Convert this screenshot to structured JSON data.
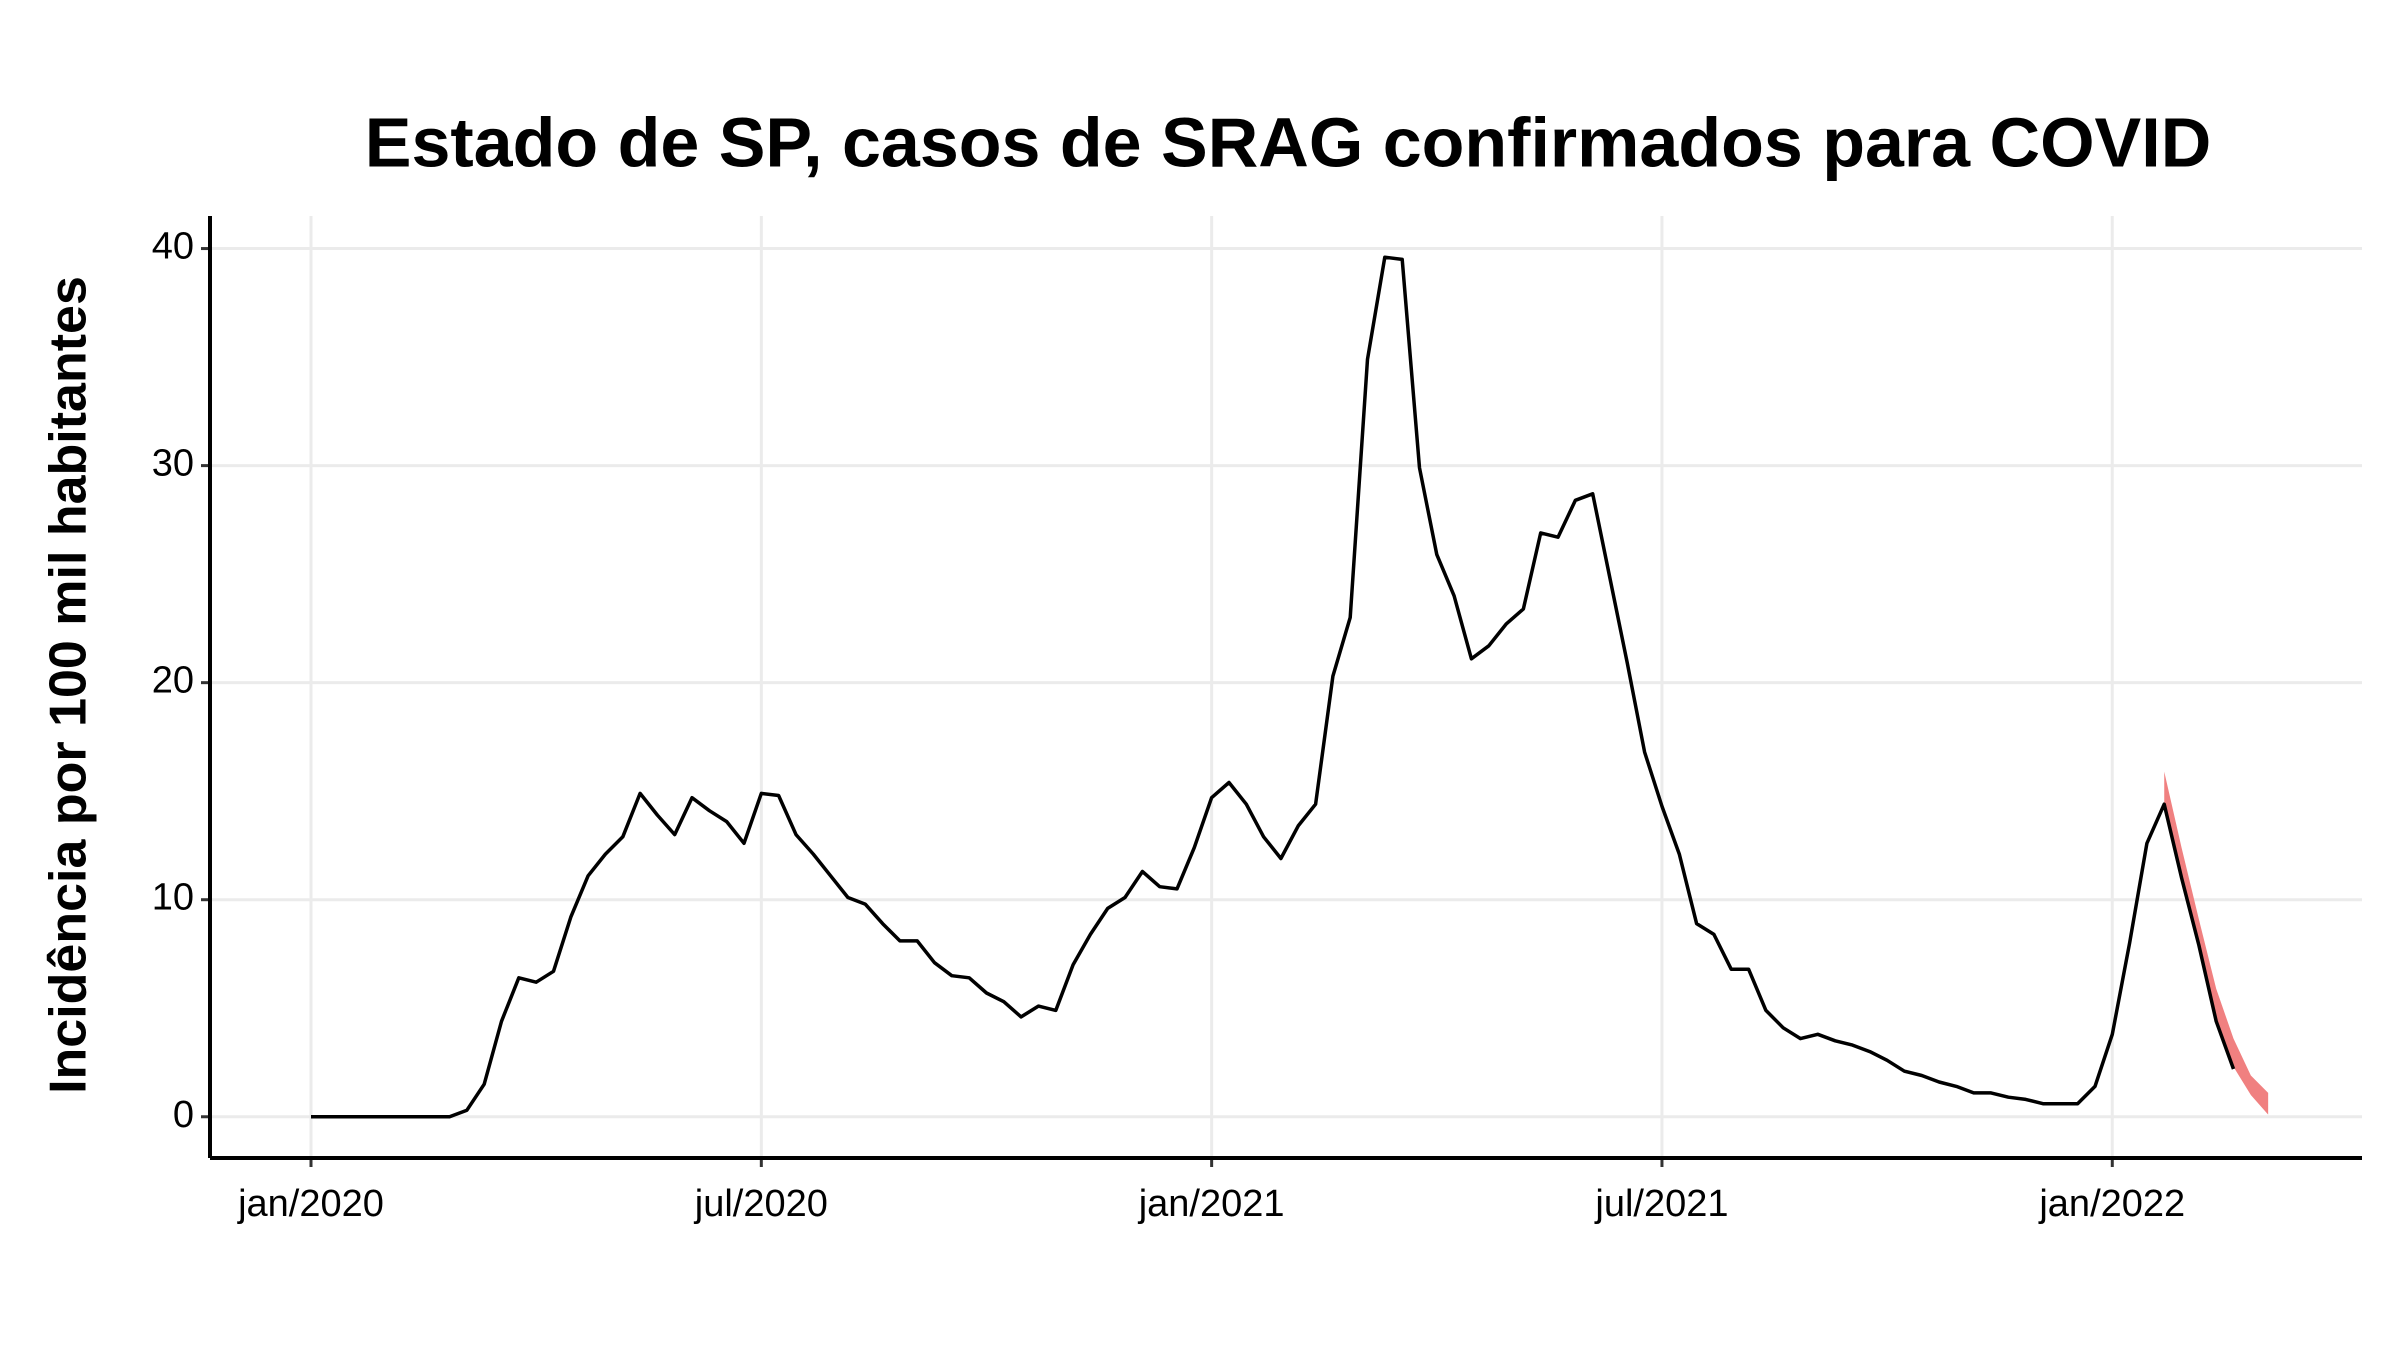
{
  "chart_data": {
    "type": "line",
    "title": "Estado de SP, casos de SRAG confirmados para COVID",
    "y_label": "Incidência por 100 mil habitantes",
    "categories": [
      "jan/2020",
      null,
      null,
      null,
      null,
      null,
      null,
      null,
      null,
      null,
      null,
      null,
      null,
      null,
      null,
      null,
      null,
      null,
      null,
      null,
      null,
      null,
      null,
      null,
      null,
      null,
      "jul/2020",
      null,
      null,
      null,
      null,
      null,
      null,
      null,
      null,
      null,
      null,
      null,
      null,
      null,
      null,
      null,
      null,
      null,
      null,
      null,
      null,
      null,
      null,
      null,
      null,
      null,
      "jan/2021",
      null,
      null,
      null,
      null,
      null,
      null,
      null,
      null,
      null,
      null,
      null,
      null,
      null,
      null,
      null,
      null,
      null,
      null,
      null,
      null,
      null,
      null,
      null,
      null,
      null,
      "jul/2021",
      null,
      null,
      null,
      null,
      null,
      null,
      null,
      null,
      null,
      null,
      null,
      null,
      null,
      null,
      null,
      null,
      null,
      null,
      null,
      null,
      null,
      null,
      null,
      null,
      null,
      "jan/2022",
      null,
      null,
      null,
      null,
      null,
      null,
      null,
      null,
      null
    ],
    "series": [
      {
        "color": "#000000",
        "values": [
          0,
          0,
          0,
          0,
          0,
          0,
          0,
          0,
          0,
          0.3,
          1.5,
          4.4,
          6.4,
          6.2,
          6.7,
          9.2,
          11.1,
          12.1,
          12.9,
          14.9,
          13.9,
          13.0,
          14.7,
          14.1,
          13.6,
          12.6,
          14.9,
          14.8,
          13.0,
          12.1,
          11.1,
          10.1,
          9.8,
          8.9,
          8.1,
          8.1,
          7.1,
          6.5,
          6.4,
          5.7,
          5.3,
          4.6,
          5.1,
          4.9,
          7.0,
          8.4,
          9.6,
          10.1,
          11.3,
          10.6,
          10.5,
          12.4,
          14.7,
          15.4,
          14.4,
          12.9,
          11.9,
          13.4,
          14.4,
          20.3,
          23.0,
          34.9,
          39.6,
          39.5,
          29.9,
          25.9,
          24.0,
          21.1,
          21.7,
          22.7,
          23.4,
          26.9,
          26.7,
          28.4,
          28.7,
          24.8,
          20.9,
          16.8,
          14.3,
          12.1,
          8.9,
          8.4,
          6.8,
          6.8,
          4.9,
          4.1,
          3.6,
          3.8,
          3.5,
          3.3,
          3.0,
          2.6,
          2.1,
          1.9,
          1.6,
          1.4,
          1.1,
          1.1,
          0.9,
          0.8,
          0.6,
          0.6,
          0.6,
          1.4,
          3.8,
          8.0,
          12.6,
          14.4,
          11.0,
          7.9,
          4.4,
          2.2,
          null,
          null
        ]
      }
    ],
    "band": {
      "color": "#f08080",
      "lower": [
        null,
        null,
        null,
        null,
        null,
        null,
        null,
        null,
        null,
        null,
        null,
        null,
        null,
        null,
        null,
        null,
        null,
        null,
        null,
        null,
        null,
        null,
        null,
        null,
        null,
        null,
        null,
        null,
        null,
        null,
        null,
        null,
        null,
        null,
        null,
        null,
        null,
        null,
        null,
        null,
        null,
        null,
        null,
        null,
        null,
        null,
        null,
        null,
        null,
        null,
        null,
        null,
        null,
        null,
        null,
        null,
        null,
        null,
        null,
        null,
        null,
        null,
        null,
        null,
        null,
        null,
        null,
        null,
        null,
        null,
        null,
        null,
        null,
        null,
        null,
        null,
        null,
        null,
        null,
        null,
        null,
        null,
        null,
        null,
        null,
        null,
        null,
        null,
        null,
        null,
        null,
        null,
        null,
        null,
        null,
        null,
        null,
        null,
        null,
        null,
        null,
        null,
        null,
        null,
        null,
        null,
        null,
        14.4,
        11.0,
        7.9,
        4.4,
        2.3,
        1.0,
        0.1
      ],
      "upper": [
        null,
        null,
        null,
        null,
        null,
        null,
        null,
        null,
        null,
        null,
        null,
        null,
        null,
        null,
        null,
        null,
        null,
        null,
        null,
        null,
        null,
        null,
        null,
        null,
        null,
        null,
        null,
        null,
        null,
        null,
        null,
        null,
        null,
        null,
        null,
        null,
        null,
        null,
        null,
        null,
        null,
        null,
        null,
        null,
        null,
        null,
        null,
        null,
        null,
        null,
        null,
        null,
        null,
        null,
        null,
        null,
        null,
        null,
        null,
        null,
        null,
        null,
        null,
        null,
        null,
        null,
        null,
        null,
        null,
        null,
        null,
        null,
        null,
        null,
        null,
        null,
        null,
        null,
        null,
        null,
        null,
        null,
        null,
        null,
        null,
        null,
        null,
        null,
        null,
        null,
        null,
        null,
        null,
        null,
        null,
        null,
        null,
        null,
        null,
        null,
        null,
        null,
        null,
        null,
        null,
        null,
        null,
        15.9,
        12.4,
        9.1,
        5.9,
        3.6,
        1.9,
        1.1
      ]
    },
    "ylim": [
      -1.9,
      41.5
    ],
    "yticks": [
      0,
      10,
      20,
      30,
      40
    ],
    "grid": true
  }
}
